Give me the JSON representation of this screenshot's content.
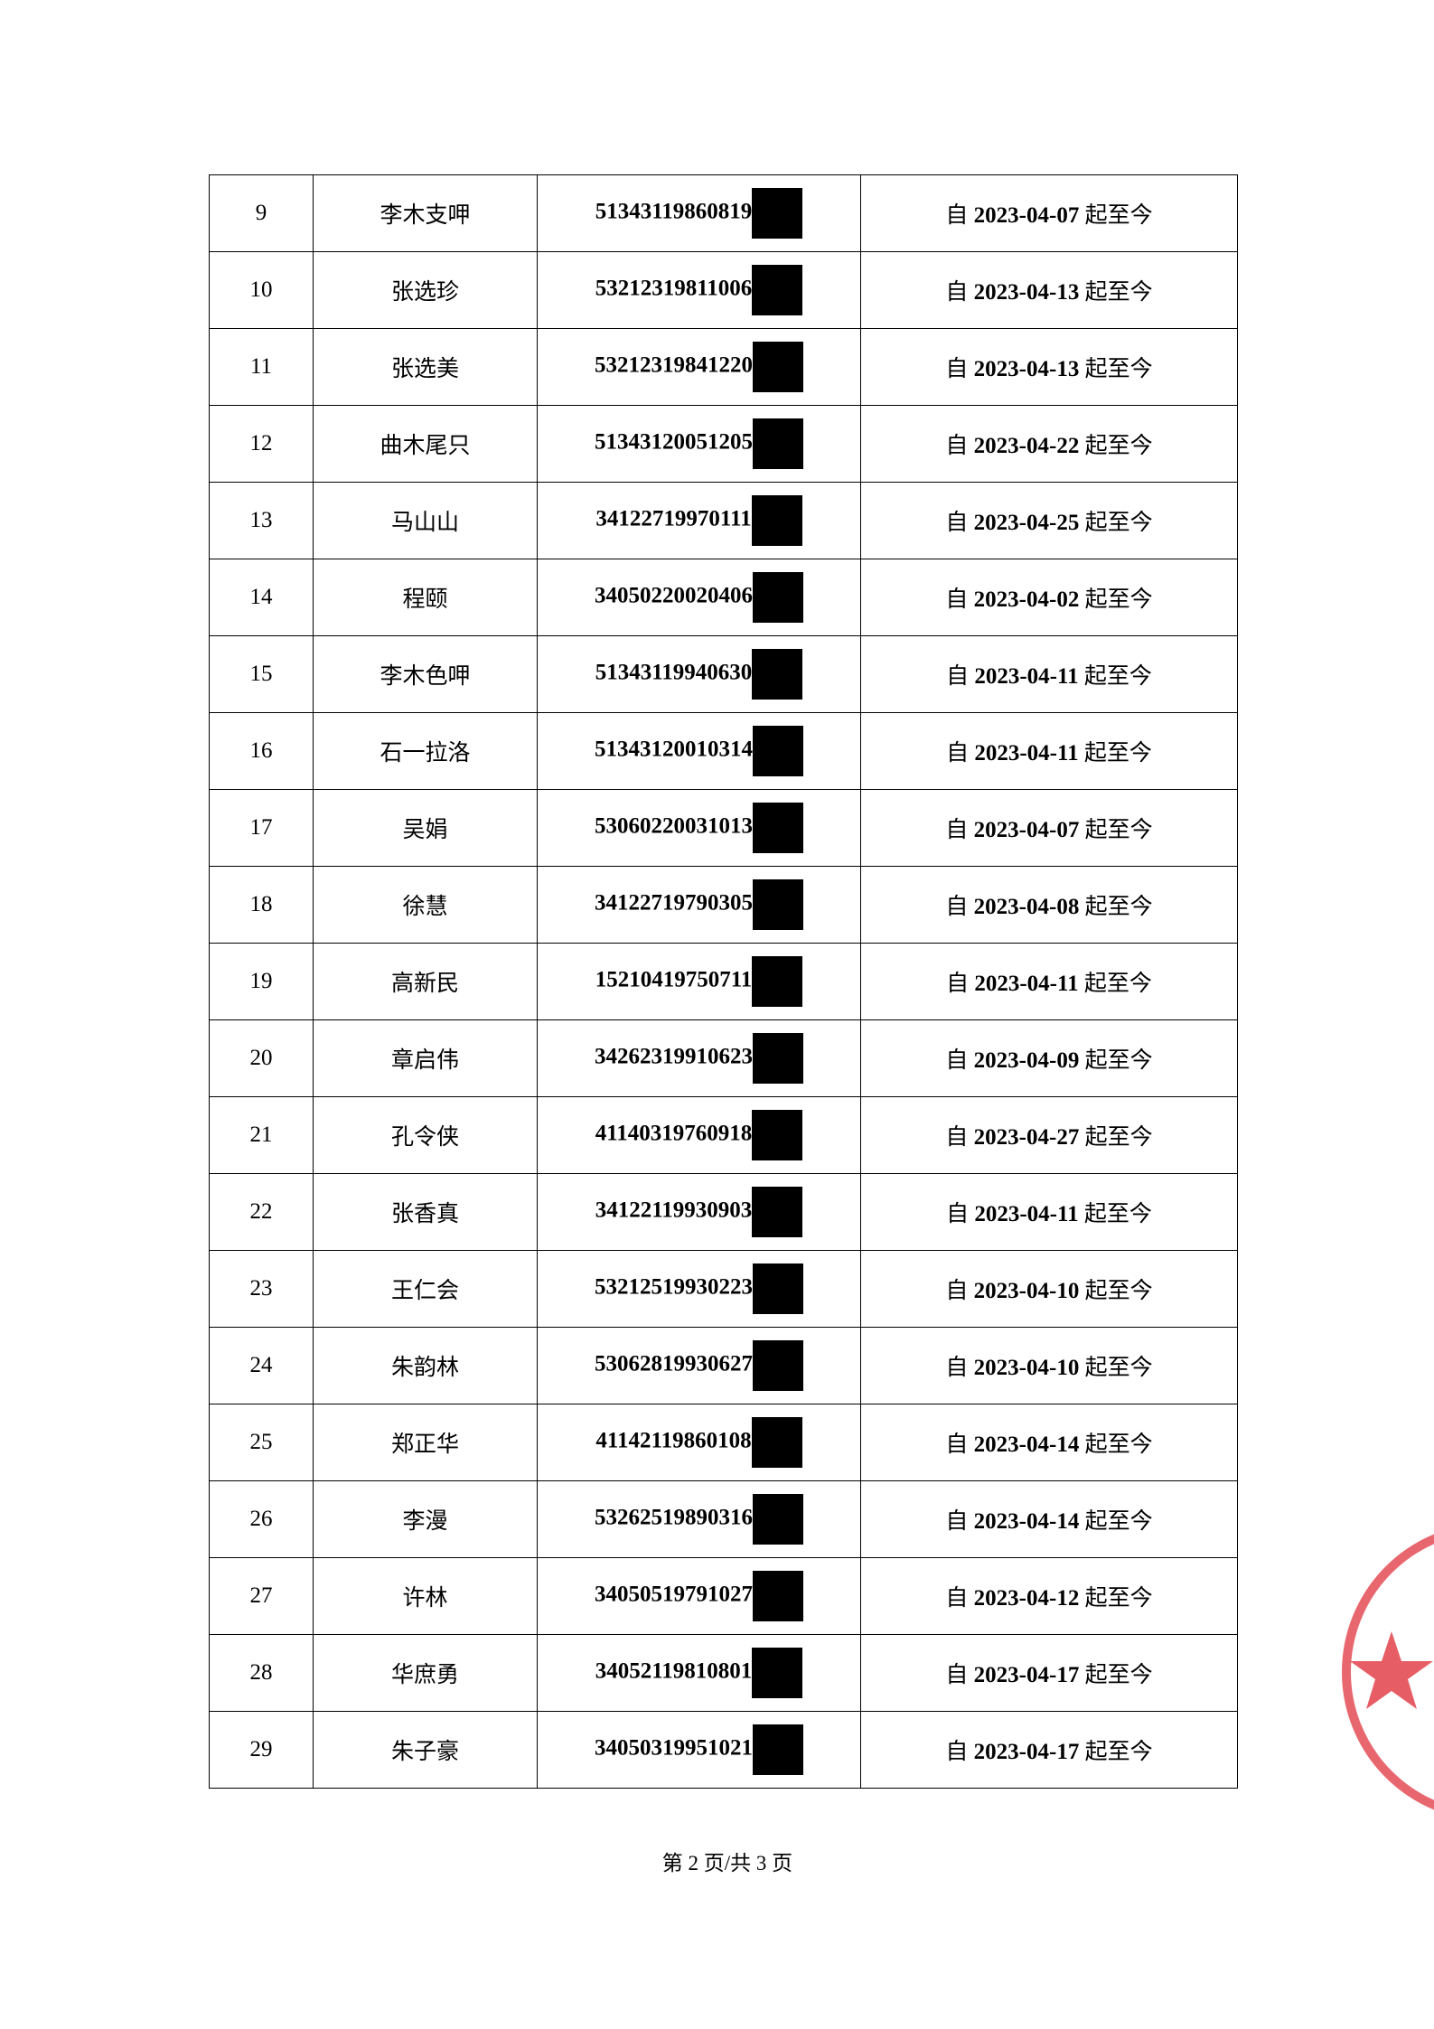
{
  "table": {
    "rows": [
      [
        "9",
        "李木支呷",
        "51343119860819",
        "自 2023-04-07 起至今"
      ],
      [
        "10",
        "张选珍",
        "53212319811006",
        "自 2023-04-13 起至今"
      ],
      [
        "11",
        "张选美",
        "53212319841220",
        "自 2023-04-13 起至今"
      ],
      [
        "12",
        "曲木尾只",
        "51343120051205",
        "自 2023-04-22 起至今"
      ],
      [
        "13",
        "马山山",
        "34122719970111",
        "自 2023-04-25 起至今"
      ],
      [
        "14",
        "程颐",
        "34050220020406",
        "自 2023-04-02 起至今"
      ],
      [
        "15",
        "李木色呷",
        "51343119940630",
        "自 2023-04-11 起至今"
      ],
      [
        "16",
        "石一拉洛",
        "51343120010314",
        "自 2023-04-11 起至今"
      ],
      [
        "17",
        "吴娟",
        "53060220031013",
        "自 2023-04-07 起至今"
      ],
      [
        "18",
        "徐慧",
        "34122719790305",
        "自 2023-04-08 起至今"
      ],
      [
        "19",
        "高新民",
        "15210419750711",
        "自 2023-04-11 起至今"
      ],
      [
        "20",
        "章启伟",
        "34262319910623",
        "自 2023-04-09 起至今"
      ],
      [
        "21",
        "孔令侠",
        "41140319760918",
        "自 2023-04-27 起至今"
      ],
      [
        "22",
        "张香真",
        "34122119930903",
        "自 2023-04-11 起至今"
      ],
      [
        "23",
        "王仁会",
        "53212519930223",
        "自 2023-04-10 起至今"
      ],
      [
        "24",
        "朱韵林",
        "53062819930627",
        "自 2023-04-10 起至今"
      ],
      [
        "25",
        "郑正华",
        "41142119860108",
        "自 2023-04-14 起至今"
      ],
      [
        "26",
        "李漫",
        "53262519890316",
        "自 2023-04-14 起至今"
      ],
      [
        "27",
        "许林",
        "34050519791027",
        "自 2023-04-12 起至今"
      ],
      [
        "28",
        "华庶勇",
        "34052119810801",
        "自 2023-04-17 起至今"
      ],
      [
        "29",
        "朱子豪",
        "34050319951021",
        "自 2023-04-17 起至今"
      ]
    ]
  },
  "footer": {
    "page": "第 2 页/共 3 页"
  }
}
